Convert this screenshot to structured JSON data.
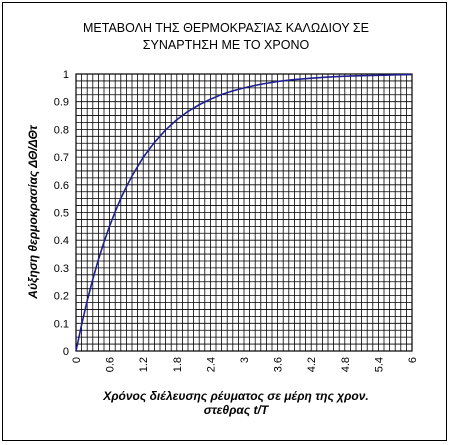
{
  "chart_data": {
    "type": "line",
    "title_lines": [
      "ΜΕΤΑΒΟΛΗ ΤΗΣ ΘΕΡΜΟΚΡΑΣΊΑΣ ΚΑΛΩΔΙΟΥ ΣΕ",
      "ΣΥΝΑΡΤΗΣΗ ΜΕ ΤΟ ΧΡΟΝΟ"
    ],
    "xlabel_lines": [
      "Χρόνος διέλευσης ρέυματος σε μέρη της χρον.",
      "στεθρας t/T"
    ],
    "ylabel": "Αύξηση θερμοκρασίας ΔΘ/ΔΘτ",
    "xlim": [
      0,
      6
    ],
    "ylim": [
      0,
      1
    ],
    "x_ticks": [
      "0",
      "0.6",
      "1.2",
      "1.8",
      "2.4",
      "3",
      "3.6",
      "4.2",
      "4.8",
      "5.4",
      "6"
    ],
    "y_ticks": [
      "0",
      "0.1",
      "0.2",
      "0.3",
      "0.4",
      "0.5",
      "0.6",
      "0.7",
      "0.8",
      "0.9",
      "1"
    ],
    "grid": true,
    "line_color": "#1f1f8f",
    "grid_color": "#000000",
    "series": [
      {
        "x": [
          0,
          0.1,
          0.2,
          0.3,
          0.4,
          0.5,
          0.6,
          0.7,
          0.8,
          0.9,
          1.0,
          1.2,
          1.4,
          1.6,
          1.8,
          2.0,
          2.2,
          2.4,
          2.6,
          2.8,
          3.0,
          3.3,
          3.6,
          3.9,
          4.2,
          4.5,
          4.8,
          5.1,
          5.4,
          5.7,
          6.0
        ],
        "y": [
          0,
          0.095,
          0.181,
          0.259,
          0.33,
          0.393,
          0.451,
          0.503,
          0.551,
          0.593,
          0.632,
          0.699,
          0.753,
          0.798,
          0.835,
          0.865,
          0.889,
          0.909,
          0.926,
          0.939,
          0.95,
          0.963,
          0.973,
          0.98,
          0.985,
          0.989,
          0.992,
          0.994,
          0.995,
          0.997,
          0.998
        ]
      }
    ]
  }
}
